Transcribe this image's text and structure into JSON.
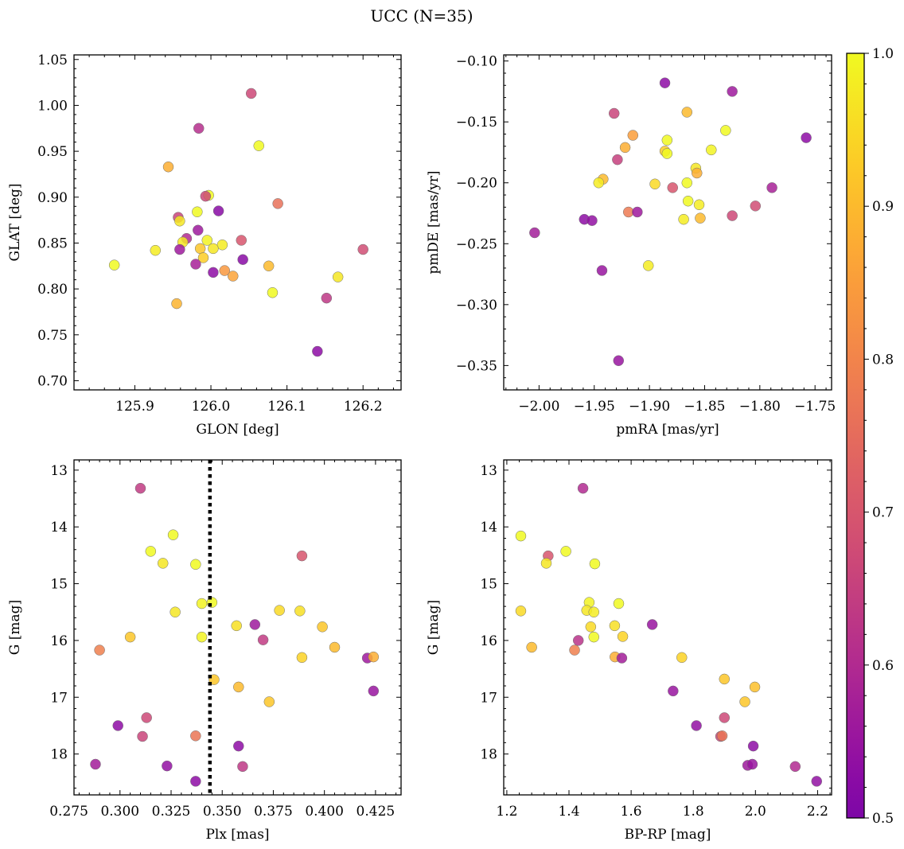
{
  "title": "UCC (N=35)",
  "colors": {
    "colormap": "plasma",
    "marker_edge": "#6e6e6e",
    "vline": "#000000"
  },
  "chart_data": [
    {
      "type": "scatter",
      "xlabel": "GLON [deg]",
      "ylabel": "GLAT [deg]",
      "xlim": [
        125.82,
        126.25
      ],
      "ylim": [
        0.69,
        1.055
      ],
      "y_inverted": false,
      "xticks": [
        125.9,
        126.0,
        126.1,
        126.2
      ],
      "xtick_labels": [
        "125.9",
        "126.0",
        "126.1",
        "126.2"
      ],
      "yticks": [
        0.7,
        0.75,
        0.8,
        0.85,
        0.9,
        0.95,
        1.0,
        1.05
      ],
      "ytick_labels": [
        "0.70",
        "0.75",
        "0.80",
        "0.85",
        "0.90",
        "0.95",
        "1.00",
        "1.05"
      ],
      "points": [
        {
          "x": 126.053,
          "y": 1.013,
          "c": 0.67
        },
        {
          "x": 125.984,
          "y": 0.975,
          "c": 0.61
        },
        {
          "x": 126.063,
          "y": 0.956,
          "c": 1.0
        },
        {
          "x": 125.944,
          "y": 0.933,
          "c": 0.88
        },
        {
          "x": 125.997,
          "y": 0.902,
          "c": 1.0
        },
        {
          "x": 125.993,
          "y": 0.901,
          "c": 0.67
        },
        {
          "x": 126.088,
          "y": 0.893,
          "c": 0.76
        },
        {
          "x": 126.01,
          "y": 0.885,
          "c": 0.52
        },
        {
          "x": 125.982,
          "y": 0.884,
          "c": 1.0
        },
        {
          "x": 125.957,
          "y": 0.878,
          "c": 0.66
        },
        {
          "x": 125.959,
          "y": 0.874,
          "c": 0.97
        },
        {
          "x": 125.983,
          "y": 0.864,
          "c": 0.56
        },
        {
          "x": 125.968,
          "y": 0.855,
          "c": 0.6
        },
        {
          "x": 125.995,
          "y": 0.853,
          "c": 0.99
        },
        {
          "x": 126.04,
          "y": 0.853,
          "c": 0.7
        },
        {
          "x": 125.963,
          "y": 0.851,
          "c": 0.97
        },
        {
          "x": 126.015,
          "y": 0.848,
          "c": 0.98
        },
        {
          "x": 126.003,
          "y": 0.844,
          "c": 0.97
        },
        {
          "x": 125.986,
          "y": 0.844,
          "c": 0.92
        },
        {
          "x": 125.959,
          "y": 0.843,
          "c": 0.56
        },
        {
          "x": 126.2,
          "y": 0.843,
          "c": 0.68
        },
        {
          "x": 125.927,
          "y": 0.842,
          "c": 0.98
        },
        {
          "x": 125.99,
          "y": 0.834,
          "c": 0.93
        },
        {
          "x": 126.042,
          "y": 0.832,
          "c": 0.52
        },
        {
          "x": 125.98,
          "y": 0.827,
          "c": 0.58
        },
        {
          "x": 125.873,
          "y": 0.826,
          "c": 1.0
        },
        {
          "x": 126.076,
          "y": 0.825,
          "c": 0.9
        },
        {
          "x": 126.018,
          "y": 0.82,
          "c": 0.84
        },
        {
          "x": 126.003,
          "y": 0.818,
          "c": 0.53
        },
        {
          "x": 126.029,
          "y": 0.814,
          "c": 0.86
        },
        {
          "x": 126.167,
          "y": 0.813,
          "c": 0.97
        },
        {
          "x": 126.081,
          "y": 0.796,
          "c": 1.0
        },
        {
          "x": 126.152,
          "y": 0.79,
          "c": 0.63
        },
        {
          "x": 125.955,
          "y": 0.784,
          "c": 0.89
        },
        {
          "x": 126.14,
          "y": 0.732,
          "c": 0.53
        }
      ]
    },
    {
      "type": "scatter",
      "xlabel": "pmRA [mas/yr]",
      "ylabel": "pmDE [mas/yr]",
      "xlim": [
        -2.032,
        -1.735
      ],
      "ylim": [
        -0.37,
        -0.095
      ],
      "y_inverted": false,
      "xticks": [
        -2.0,
        -1.95,
        -1.9,
        -1.85,
        -1.8,
        -1.75
      ],
      "xtick_labels": [
        "−2.00",
        "−1.95",
        "−1.90",
        "−1.85",
        "−1.80",
        "−1.75"
      ],
      "yticks": [
        -0.35,
        -0.3,
        -0.25,
        -0.2,
        -0.15,
        -0.1
      ],
      "ytick_labels": [
        "−0.35",
        "−0.30",
        "−0.25",
        "−0.20",
        "−0.15",
        "−0.10"
      ],
      "points": [
        {
          "x": -1.886,
          "y": -0.118,
          "c": 0.53
        },
        {
          "x": -1.825,
          "y": -0.125,
          "c": 0.56
        },
        {
          "x": -1.866,
          "y": -0.142,
          "c": 0.9
        },
        {
          "x": -1.932,
          "y": -0.143,
          "c": 0.66
        },
        {
          "x": -1.831,
          "y": -0.157,
          "c": 1.0
        },
        {
          "x": -1.915,
          "y": -0.161,
          "c": 0.85
        },
        {
          "x": -1.758,
          "y": -0.163,
          "c": 0.53
        },
        {
          "x": -1.884,
          "y": -0.165,
          "c": 1.0
        },
        {
          "x": -1.922,
          "y": -0.171,
          "c": 0.88
        },
        {
          "x": -1.844,
          "y": -0.173,
          "c": 0.99
        },
        {
          "x": -1.886,
          "y": -0.174,
          "c": 0.93
        },
        {
          "x": -1.884,
          "y": -0.176,
          "c": 1.0
        },
        {
          "x": -1.929,
          "y": -0.181,
          "c": 0.65
        },
        {
          "x": -1.858,
          "y": -0.188,
          "c": 0.97
        },
        {
          "x": -1.857,
          "y": -0.192,
          "c": 0.88
        },
        {
          "x": -1.942,
          "y": -0.197,
          "c": 0.9
        },
        {
          "x": -1.946,
          "y": -0.2,
          "c": 0.98
        },
        {
          "x": -1.895,
          "y": -0.201,
          "c": 0.95
        },
        {
          "x": -1.866,
          "y": -0.2,
          "c": 1.0
        },
        {
          "x": -1.879,
          "y": -0.204,
          "c": 0.7
        },
        {
          "x": -1.789,
          "y": -0.204,
          "c": 0.58
        },
        {
          "x": -1.865,
          "y": -0.215,
          "c": 1.0
        },
        {
          "x": -1.855,
          "y": -0.218,
          "c": 0.98
        },
        {
          "x": -1.804,
          "y": -0.219,
          "c": 0.68
        },
        {
          "x": -1.919,
          "y": -0.224,
          "c": 0.78
        },
        {
          "x": -1.911,
          "y": -0.224,
          "c": 0.56
        },
        {
          "x": -1.825,
          "y": -0.227,
          "c": 0.67
        },
        {
          "x": -1.869,
          "y": -0.23,
          "c": 0.98
        },
        {
          "x": -1.854,
          "y": -0.229,
          "c": 0.9
        },
        {
          "x": -1.959,
          "y": -0.23,
          "c": 0.53
        },
        {
          "x": -1.952,
          "y": -0.231,
          "c": 0.54
        },
        {
          "x": -2.004,
          "y": -0.241,
          "c": 0.57
        },
        {
          "x": -1.901,
          "y": -0.268,
          "c": 0.98
        },
        {
          "x": -1.943,
          "y": -0.272,
          "c": 0.55
        },
        {
          "x": -1.928,
          "y": -0.346,
          "c": 0.55
        }
      ]
    },
    {
      "type": "scatter",
      "xlabel": "Plx [mas]",
      "ylabel": "G [mag]",
      "xlim": [
        0.2775,
        0.4375
      ],
      "ylim": [
        12.82,
        18.72
      ],
      "y_inverted": true,
      "xticks": [
        0.275,
        0.3,
        0.325,
        0.35,
        0.375,
        0.4,
        0.425
      ],
      "xtick_labels": [
        "0.275",
        "0.300",
        "0.325",
        "0.350",
        "0.375",
        "0.400",
        "0.425"
      ],
      "yticks": [
        13,
        14,
        15,
        16,
        17,
        18
      ],
      "ytick_labels": [
        "13",
        "14",
        "15",
        "16",
        "17",
        "18"
      ],
      "vline": {
        "x": 0.344,
        "style": "dotted"
      },
      "points": [
        {
          "x": 0.31,
          "y": 13.32,
          "c": 0.64
        },
        {
          "x": 0.326,
          "y": 14.14,
          "c": 1.0
        },
        {
          "x": 0.315,
          "y": 14.43,
          "c": 1.0
        },
        {
          "x": 0.389,
          "y": 14.51,
          "c": 0.7
        },
        {
          "x": 0.321,
          "y": 14.64,
          "c": 0.97
        },
        {
          "x": 0.337,
          "y": 14.66,
          "c": 1.0
        },
        {
          "x": 0.34,
          "y": 15.35,
          "c": 0.99
        },
        {
          "x": 0.345,
          "y": 15.33,
          "c": 1.0
        },
        {
          "x": 0.378,
          "y": 15.47,
          "c": 0.95
        },
        {
          "x": 0.388,
          "y": 15.48,
          "c": 0.96
        },
        {
          "x": 0.327,
          "y": 15.5,
          "c": 0.97
        },
        {
          "x": 0.357,
          "y": 15.74,
          "c": 0.96
        },
        {
          "x": 0.366,
          "y": 15.72,
          "c": 0.56
        },
        {
          "x": 0.399,
          "y": 15.76,
          "c": 0.92
        },
        {
          "x": 0.305,
          "y": 15.94,
          "c": 0.92
        },
        {
          "x": 0.34,
          "y": 15.94,
          "c": 0.99
        },
        {
          "x": 0.37,
          "y": 15.99,
          "c": 0.64
        },
        {
          "x": 0.405,
          "y": 16.12,
          "c": 0.9
        },
        {
          "x": 0.29,
          "y": 16.17,
          "c": 0.79
        },
        {
          "x": 0.389,
          "y": 16.3,
          "c": 0.94
        },
        {
          "x": 0.421,
          "y": 16.31,
          "c": 0.56
        },
        {
          "x": 0.424,
          "y": 16.29,
          "c": 0.88
        },
        {
          "x": 0.346,
          "y": 16.69,
          "c": 0.92
        },
        {
          "x": 0.358,
          "y": 16.82,
          "c": 0.9
        },
        {
          "x": 0.424,
          "y": 16.89,
          "c": 0.55
        },
        {
          "x": 0.373,
          "y": 17.08,
          "c": 0.92
        },
        {
          "x": 0.313,
          "y": 17.36,
          "c": 0.67
        },
        {
          "x": 0.299,
          "y": 17.5,
          "c": 0.53
        },
        {
          "x": 0.311,
          "y": 17.69,
          "c": 0.66
        },
        {
          "x": 0.337,
          "y": 17.68,
          "c": 0.77
        },
        {
          "x": 0.358,
          "y": 17.86,
          "c": 0.53
        },
        {
          "x": 0.288,
          "y": 18.18,
          "c": 0.57
        },
        {
          "x": 0.323,
          "y": 18.21,
          "c": 0.54
        },
        {
          "x": 0.36,
          "y": 18.22,
          "c": 0.63
        },
        {
          "x": 0.337,
          "y": 18.48,
          "c": 0.53
        }
      ]
    },
    {
      "type": "scatter",
      "xlabel": "BP-RP [mag]",
      "ylabel": "G [mag]",
      "xlim": [
        1.19,
        2.245
      ],
      "ylim": [
        12.82,
        18.72
      ],
      "y_inverted": true,
      "xticks": [
        1.2,
        1.4,
        1.6,
        1.8,
        2.0,
        2.2
      ],
      "xtick_labels": [
        "1.2",
        "1.4",
        "1.6",
        "1.8",
        "2.0",
        "2.2"
      ],
      "yticks": [
        13,
        14,
        15,
        16,
        17,
        18
      ],
      "ytick_labels": [
        "13",
        "14",
        "15",
        "16",
        "17",
        "18"
      ],
      "points": [
        {
          "x": 1.445,
          "y": 13.32,
          "c": 0.6
        },
        {
          "x": 1.245,
          "y": 14.16,
          "c": 1.0
        },
        {
          "x": 1.39,
          "y": 14.43,
          "c": 1.0
        },
        {
          "x": 1.333,
          "y": 14.51,
          "c": 0.7
        },
        {
          "x": 1.327,
          "y": 14.64,
          "c": 0.97
        },
        {
          "x": 1.483,
          "y": 14.65,
          "c": 1.0
        },
        {
          "x": 1.465,
          "y": 15.33,
          "c": 0.99
        },
        {
          "x": 1.56,
          "y": 15.35,
          "c": 1.0
        },
        {
          "x": 1.457,
          "y": 15.47,
          "c": 0.97
        },
        {
          "x": 1.48,
          "y": 15.5,
          "c": 0.98
        },
        {
          "x": 1.245,
          "y": 15.48,
          "c": 0.95
        },
        {
          "x": 1.47,
          "y": 15.76,
          "c": 0.95
        },
        {
          "x": 1.547,
          "y": 15.74,
          "c": 0.96
        },
        {
          "x": 1.668,
          "y": 15.72,
          "c": 0.55
        },
        {
          "x": 1.48,
          "y": 15.94,
          "c": 1.0
        },
        {
          "x": 1.573,
          "y": 15.93,
          "c": 0.94
        },
        {
          "x": 1.43,
          "y": 16.0,
          "c": 0.62
        },
        {
          "x": 1.28,
          "y": 16.12,
          "c": 0.9
        },
        {
          "x": 1.418,
          "y": 16.17,
          "c": 0.79
        },
        {
          "x": 1.548,
          "y": 16.29,
          "c": 0.88
        },
        {
          "x": 1.57,
          "y": 16.31,
          "c": 0.57
        },
        {
          "x": 1.763,
          "y": 16.3,
          "c": 0.94
        },
        {
          "x": 1.9,
          "y": 16.68,
          "c": 0.92
        },
        {
          "x": 1.998,
          "y": 16.82,
          "c": 0.91
        },
        {
          "x": 1.735,
          "y": 16.89,
          "c": 0.55
        },
        {
          "x": 1.966,
          "y": 17.08,
          "c": 0.92
        },
        {
          "x": 1.9,
          "y": 17.36,
          "c": 0.67
        },
        {
          "x": 1.81,
          "y": 17.5,
          "c": 0.54
        },
        {
          "x": 1.888,
          "y": 17.69,
          "c": 0.66
        },
        {
          "x": 1.893,
          "y": 17.68,
          "c": 0.77
        },
        {
          "x": 1.993,
          "y": 17.86,
          "c": 0.53
        },
        {
          "x": 1.975,
          "y": 18.2,
          "c": 0.56
        },
        {
          "x": 1.99,
          "y": 18.18,
          "c": 0.55
        },
        {
          "x": 2.128,
          "y": 18.22,
          "c": 0.6
        },
        {
          "x": 2.197,
          "y": 18.48,
          "c": 0.54
        }
      ]
    }
  ],
  "colorbar": {
    "min": 0.5,
    "max": 1.0,
    "ticks": [
      0.5,
      0.6,
      0.7,
      0.8,
      0.9,
      1.0
    ],
    "tick_labels": [
      "0.5",
      "0.6",
      "0.7",
      "0.8",
      "0.9",
      "1.0"
    ]
  }
}
